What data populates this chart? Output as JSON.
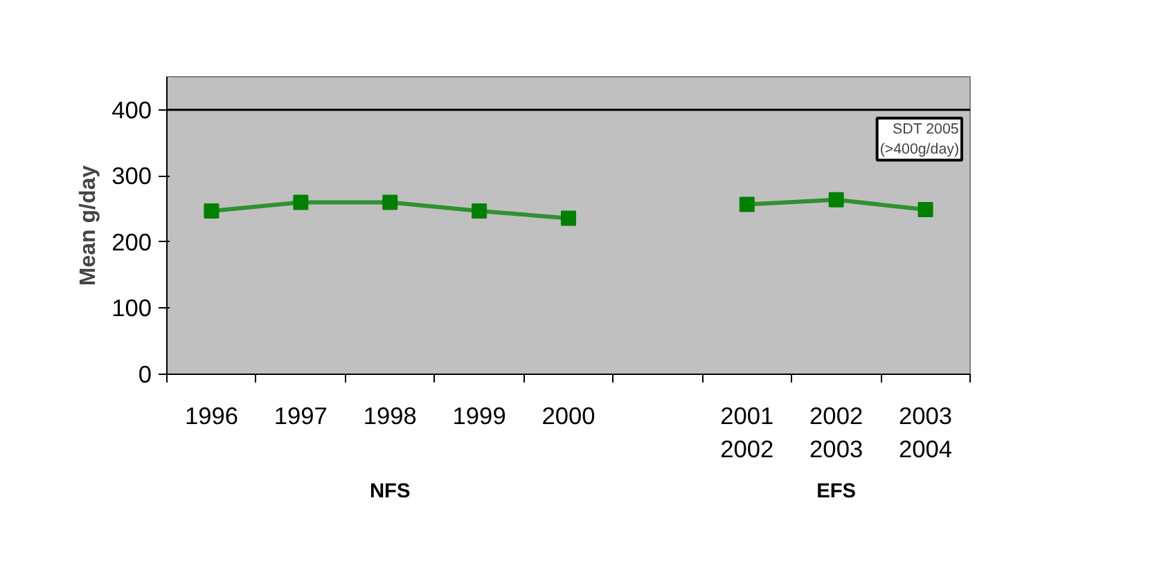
{
  "chart_data": {
    "type": "line",
    "ylabel": "Mean g/day",
    "categories": [
      "1996",
      "1997",
      "1998",
      "1999",
      "2000",
      null,
      "2001\n2002",
      "2002\n2003",
      "2003\n2004"
    ],
    "series": [
      {
        "color": "#008000",
        "values": [
          247,
          260,
          260,
          247,
          236,
          null,
          257,
          264,
          249
        ]
      }
    ],
    "ylim": [
      0,
      450
    ],
    "yticks": [
      0,
      100,
      200,
      300,
      400
    ],
    "grid": false,
    "marker": "square",
    "ref_lines": [
      {
        "axis": "y",
        "value": 400,
        "label": "SDT 2005\n(>400g/day)",
        "color": "#000000"
      }
    ],
    "annotations": [
      "NFS",
      "EFS"
    ]
  }
}
